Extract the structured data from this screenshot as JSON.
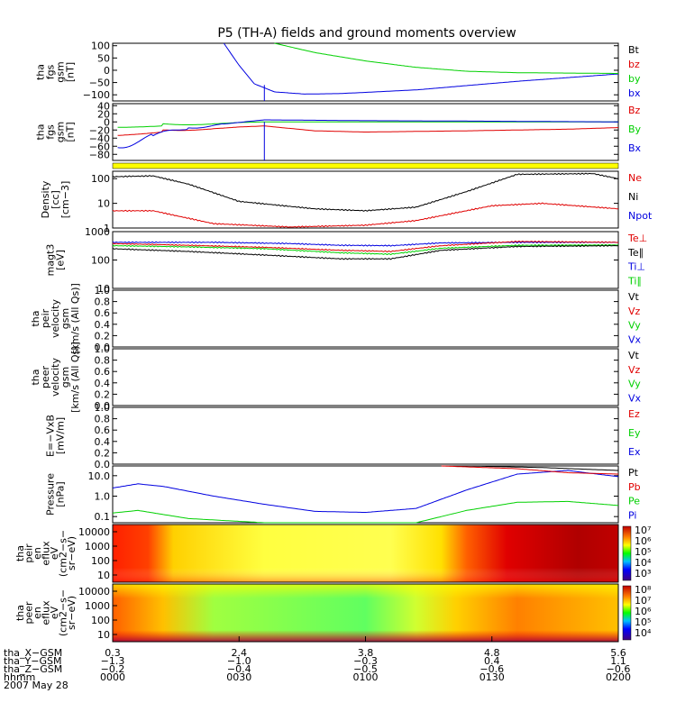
{
  "title": "P5 (TH-A) fields and ground moments overview",
  "colors": {
    "black": "#000000",
    "red": "#e00000",
    "green": "#00d000",
    "blue": "#0000e0",
    "yellow": "#ffff00"
  },
  "chart_data": {
    "type": "line",
    "x_range": [
      "0000",
      "0200"
    ],
    "panels": [
      {
        "id": "fgs",
        "ylabel": [
          "tha",
          "fgs",
          "gsm",
          "[nT]"
        ],
        "yticks": [
          "100",
          "50",
          "0",
          "−50",
          "−100"
        ],
        "ylim": [
          -125,
          110
        ],
        "legend": [
          {
            "text": "Bt",
            "color": "black"
          },
          {
            "text": "bz",
            "color": "red"
          },
          {
            "text": "by",
            "color": "green"
          },
          {
            "text": "bx",
            "color": "blue"
          }
        ],
        "series": [
          {
            "name": "bx",
            "color": "blue",
            "points": [
              [
                0.22,
                110
              ],
              [
                0.25,
                20
              ],
              [
                0.28,
                -55
              ],
              [
                0.32,
                -88
              ],
              [
                0.38,
                -97
              ],
              [
                0.45,
                -95
              ],
              [
                0.6,
                -80
              ],
              [
                0.8,
                -45
              ],
              [
                1.0,
                -15
              ]
            ]
          },
          {
            "name": "by",
            "color": "green",
            "points": [
              [
                0.32,
                110
              ],
              [
                0.4,
                72
              ],
              [
                0.5,
                38
              ],
              [
                0.6,
                12
              ],
              [
                0.7,
                -4
              ],
              [
                0.8,
                -10
              ],
              [
                1.0,
                -13
              ]
            ]
          }
        ],
        "spike": {
          "x": 0.3,
          "from": -60,
          "to": -125
        }
      },
      {
        "id": "fgs_hi",
        "ylabel": [
          "tha",
          "fgs",
          "gsm",
          "[nT]"
        ],
        "yticks": [
          "40",
          "20",
          "0",
          "−20",
          "−40",
          "−60",
          "−80"
        ],
        "ylim": [
          -95,
          45
        ],
        "legend": [
          {
            "text": "Bz",
            "color": "red"
          },
          {
            "text": "By",
            "color": "green"
          },
          {
            "text": "Bx",
            "color": "blue"
          }
        ],
        "series": [
          {
            "name": "Bz",
            "color": "red",
            "points": [
              [
                0.01,
                -30
              ],
              [
                0.1,
                -20
              ],
              [
                0.2,
                -15
              ],
              [
                0.3,
                -10
              ],
              [
                0.4,
                -22
              ],
              [
                0.5,
                -25
              ],
              [
                0.7,
                -22
              ],
              [
                0.9,
                -18
              ],
              [
                1.0,
                -14
              ]
            ]
          },
          {
            "name": "By",
            "color": "green",
            "points": [
              [
                0.01,
                -10
              ],
              [
                0.1,
                -5
              ],
              [
                0.2,
                -3
              ],
              [
                0.3,
                0
              ],
              [
                0.5,
                0
              ],
              [
                0.7,
                0
              ],
              [
                1.0,
                0
              ]
            ]
          },
          {
            "name": "Bx",
            "color": "blue",
            "points": [
              [
                0.01,
                -60
              ],
              [
                0.08,
                -35
              ],
              [
                0.15,
                -15
              ],
              [
                0.22,
                -5
              ],
              [
                0.3,
                5
              ],
              [
                0.5,
                3
              ],
              [
                0.7,
                2
              ],
              [
                1.0,
                0
              ]
            ]
          }
        ],
        "spike": {
          "x": 0.3,
          "from": 0,
          "to": -95
        }
      },
      {
        "id": "density",
        "ylabel": [
          "Density",
          "[cc]",
          "[cm−3]"
        ],
        "yticks": [
          "100",
          "10",
          "1"
        ],
        "log": true,
        "ylim": [
          1,
          200
        ],
        "legend": [
          {
            "text": "Ne",
            "color": "red"
          },
          {
            "text": "Ni",
            "color": "black"
          },
          {
            "text": "Npot",
            "color": "blue"
          }
        ],
        "series": [
          {
            "name": "Ni",
            "color": "black",
            "points": [
              [
                0.0,
                120
              ],
              [
                0.08,
                130
              ],
              [
                0.15,
                60
              ],
              [
                0.25,
                12
              ],
              [
                0.4,
                6
              ],
              [
                0.5,
                5
              ],
              [
                0.6,
                7
              ],
              [
                0.7,
                30
              ],
              [
                0.8,
                150
              ],
              [
                0.95,
                160
              ],
              [
                1.0,
                100
              ]
            ]
          },
          {
            "name": "Ne",
            "color": "red",
            "points": [
              [
                0.0,
                5
              ],
              [
                0.08,
                5
              ],
              [
                0.2,
                1.5
              ],
              [
                0.35,
                1.1
              ],
              [
                0.5,
                1.3
              ],
              [
                0.6,
                2
              ],
              [
                0.75,
                8
              ],
              [
                0.85,
                10
              ],
              [
                1.0,
                6
              ]
            ]
          }
        ]
      },
      {
        "id": "temp",
        "ylabel": [
          "magt3",
          "[eV]"
        ],
        "yticks": [
          "1000",
          "100",
          "10"
        ],
        "log": true,
        "ylim": [
          10,
          1000
        ],
        "legend": [
          {
            "text": "Te⊥",
            "color": "red"
          },
          {
            "text": "Te∥",
            "color": "black"
          },
          {
            "text": "Ti⊥",
            "color": "blue"
          },
          {
            "text": "Ti∥",
            "color": "green"
          }
        ],
        "series": [
          {
            "name": "Ti⊥",
            "color": "blue",
            "points": [
              [
                0.0,
                420
              ],
              [
                0.2,
                420
              ],
              [
                0.35,
                380
              ],
              [
                0.45,
                330
              ],
              [
                0.55,
                320
              ],
              [
                0.65,
                400
              ],
              [
                0.8,
                420
              ],
              [
                1.0,
                420
              ]
            ]
          },
          {
            "name": "Te⊥",
            "color": "red",
            "points": [
              [
                0.0,
                380
              ],
              [
                0.15,
                330
              ],
              [
                0.3,
                280
              ],
              [
                0.45,
                220
              ],
              [
                0.55,
                200
              ],
              [
                0.65,
                320
              ],
              [
                0.8,
                450
              ],
              [
                1.0,
                420
              ]
            ]
          },
          {
            "name": "Ti∥",
            "color": "green",
            "points": [
              [
                0.0,
                320
              ],
              [
                0.15,
                290
              ],
              [
                0.3,
                250
              ],
              [
                0.45,
                180
              ],
              [
                0.55,
                160
              ],
              [
                0.65,
                260
              ],
              [
                0.8,
                330
              ],
              [
                1.0,
                340
              ]
            ]
          },
          {
            "name": "Te∥",
            "color": "black",
            "points": [
              [
                0.0,
                250
              ],
              [
                0.15,
                200
              ],
              [
                0.3,
                150
              ],
              [
                0.45,
                110
              ],
              [
                0.55,
                110
              ],
              [
                0.65,
                220
              ],
              [
                0.8,
                300
              ],
              [
                1.0,
                320
              ]
            ]
          }
        ]
      },
      {
        "id": "peir_vel",
        "ylabel": [
          "tha",
          "peir",
          "velocity",
          "gsm",
          "[km/s (All Qs)]"
        ],
        "yticks": [
          "1.0",
          "0.8",
          "0.6",
          "0.4",
          "0.2",
          "0.0"
        ],
        "ylim": [
          0,
          1
        ],
        "legend": [
          {
            "text": "Vt",
            "color": "black"
          },
          {
            "text": "Vz",
            "color": "red"
          },
          {
            "text": "Vy",
            "color": "green"
          },
          {
            "text": "Vx",
            "color": "blue"
          }
        ],
        "series": []
      },
      {
        "id": "peer_vel",
        "ylabel": [
          "tha",
          "peer",
          "velocity",
          "gsm",
          "[km/s (All Qs)]"
        ],
        "yticks": [
          "1.0",
          "0.8",
          "0.6",
          "0.4",
          "0.2",
          "0.0"
        ],
        "ylim": [
          0,
          1
        ],
        "legend": [
          {
            "text": "Vt",
            "color": "black"
          },
          {
            "text": "Vz",
            "color": "red"
          },
          {
            "text": "Vy",
            "color": "green"
          },
          {
            "text": "Vx",
            "color": "blue"
          }
        ],
        "series": []
      },
      {
        "id": "efield",
        "ylabel": [
          "E=−VxB",
          "[mV/m]"
        ],
        "yticks": [
          "1.0",
          "0.8",
          "0.6",
          "0.4",
          "0.2",
          "0.0"
        ],
        "ylim": [
          0,
          1
        ],
        "legend": [
          {
            "text": "Ez",
            "color": "red"
          },
          {
            "text": "Ey",
            "color": "green"
          },
          {
            "text": "Ex",
            "color": "blue"
          }
        ],
        "series": []
      },
      {
        "id": "pressure",
        "ylabel": [
          "Pressure",
          "[nPa]"
        ],
        "yticks": [
          "10.0",
          "1.0",
          "0.1"
        ],
        "log": true,
        "ylim": [
          0.05,
          30
        ],
        "legend": [
          {
            "text": "Pt",
            "color": "black"
          },
          {
            "text": "Pb",
            "color": "red"
          },
          {
            "text": "Pe",
            "color": "green"
          },
          {
            "text": "Pi",
            "color": "blue"
          }
        ],
        "series": [
          {
            "name": "Pi",
            "color": "blue",
            "points": [
              [
                0.0,
                2.5
              ],
              [
                0.05,
                4
              ],
              [
                0.1,
                3
              ],
              [
                0.2,
                1
              ],
              [
                0.3,
                0.4
              ],
              [
                0.4,
                0.18
              ],
              [
                0.5,
                0.16
              ],
              [
                0.6,
                0.25
              ],
              [
                0.7,
                2
              ],
              [
                0.8,
                12
              ],
              [
                0.9,
                18
              ],
              [
                1.0,
                9
              ]
            ]
          },
          {
            "name": "Pe",
            "color": "green",
            "points": [
              [
                0.0,
                0.15
              ],
              [
                0.05,
                0.2
              ],
              [
                0.15,
                0.08
              ],
              [
                0.3,
                0.04
              ],
              [
                0.5,
                0.035
              ],
              [
                0.6,
                0.05
              ],
              [
                0.7,
                0.2
              ],
              [
                0.8,
                0.5
              ],
              [
                0.9,
                0.55
              ],
              [
                1.0,
                0.35
              ]
            ]
          },
          {
            "name": "Pt",
            "color": "black",
            "points": [
              [
                0.55,
                30
              ],
              [
                0.7,
                30
              ],
              [
                0.85,
                25
              ],
              [
                1.0,
                18
              ]
            ]
          },
          {
            "name": "Pb",
            "color": "red",
            "points": [
              [
                0.65,
                30
              ],
              [
                0.8,
                22
              ],
              [
                0.9,
                14
              ],
              [
                1.0,
                12
              ]
            ]
          }
        ]
      }
    ],
    "spectrograms": [
      {
        "id": "peir",
        "ylabel": [
          "tha",
          "peir",
          "en",
          "eflux",
          "eV",
          "(cm2−s−",
          "sr−eV)"
        ],
        "yticks": [
          "10000",
          "1000",
          "100",
          "10"
        ],
        "cbar": [
          "10⁷",
          "10⁶",
          "10⁵",
          "10⁴",
          "10³"
        ]
      },
      {
        "id": "peer",
        "ylabel": [
          "tha",
          "peer",
          "en",
          "eflux",
          "eV",
          "(cm2−s−",
          "sr−eV)"
        ],
        "yticks": [
          "10000",
          "1000",
          "100",
          "10"
        ],
        "cbar": [
          "10⁸",
          "10⁷",
          "10⁶",
          "10⁵",
          "10⁴"
        ]
      }
    ],
    "x_axis": {
      "rows": [
        {
          "label": "tha_X−GSM",
          "values": [
            "0.3",
            "2.4",
            "3.8",
            "4.8",
            "5.6"
          ]
        },
        {
          "label": "tha_Y−GSM",
          "values": [
            "−1.3",
            "−1.0",
            "−0.3",
            "0.4",
            "1.1"
          ]
        },
        {
          "label": "tha_Z−GSM",
          "values": [
            "−0.2",
            "−0.4",
            "−0.5",
            "−0.6",
            "−0.6"
          ]
        },
        {
          "label": "hhmm",
          "values": [
            "0000",
            "0030",
            "0100",
            "0130",
            "0200"
          ]
        }
      ],
      "date": "2007 May 28"
    }
  }
}
